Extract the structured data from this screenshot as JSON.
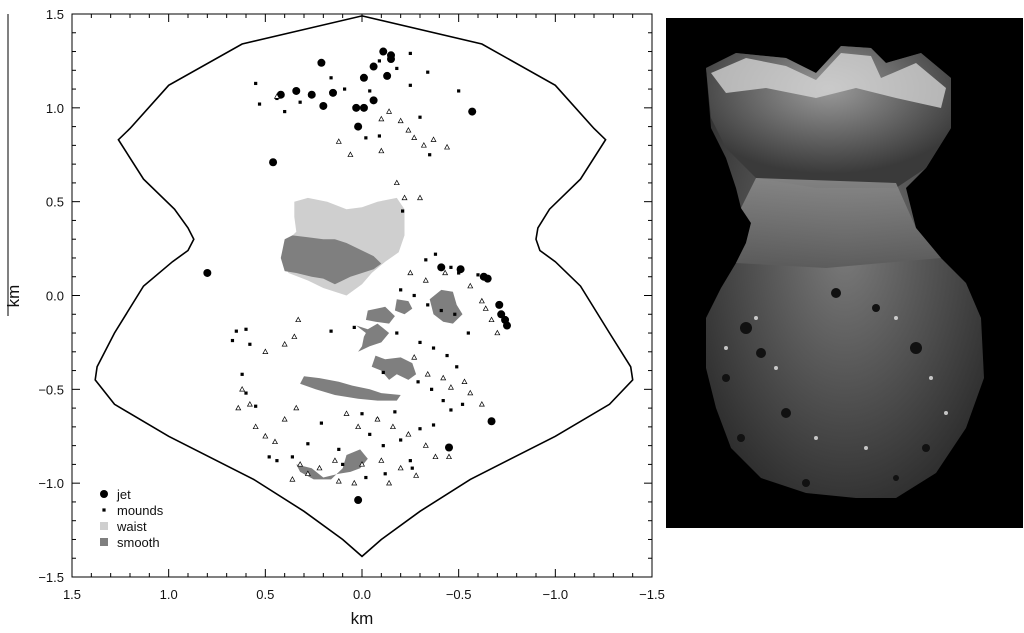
{
  "chart_data": {
    "type": "scatter",
    "xlabel": "km",
    "ylabel": "km",
    "xlim": [
      1.5,
      -1.5
    ],
    "ylim": [
      -1.5,
      1.5
    ],
    "x_ticks": [
      "1.5",
      "1.0",
      "0.5",
      "0.0",
      "−0.5",
      "−1.0",
      "−1.5"
    ],
    "y_ticks": [
      "−1.5",
      "−1.0",
      "−0.5",
      "0.0",
      "0.5",
      "1.0",
      "1.5"
    ],
    "legend_position": "bottom-left",
    "grid": false,
    "outline": [
      [
        0,
        1.49
      ],
      [
        -0.62,
        1.34
      ],
      [
        -1.0,
        1.12
      ],
      [
        -1.2,
        0.89
      ],
      [
        -1.26,
        0.83
      ],
      [
        -1.13,
        0.62
      ],
      [
        -0.97,
        0.46
      ],
      [
        -0.91,
        0.36
      ],
      [
        -0.9,
        0.3
      ],
      [
        -0.92,
        0.24
      ],
      [
        -1.0,
        0.18
      ],
      [
        -1.13,
        0.05
      ],
      [
        -1.28,
        -0.2
      ],
      [
        -1.39,
        -0.38
      ],
      [
        -1.4,
        -0.45
      ],
      [
        -1.28,
        -0.58
      ],
      [
        -1.0,
        -0.75
      ],
      [
        -0.56,
        -0.98
      ],
      [
        -0.3,
        -1.15
      ],
      [
        -0.1,
        -1.3
      ],
      [
        0,
        -1.39
      ],
      [
        0.1,
        -1.3
      ],
      [
        0.3,
        -1.15
      ],
      [
        0.56,
        -0.98
      ],
      [
        1.0,
        -0.75
      ],
      [
        1.28,
        -0.58
      ],
      [
        1.38,
        -0.45
      ],
      [
        1.37,
        -0.38
      ],
      [
        1.28,
        -0.2
      ],
      [
        1.13,
        0.05
      ],
      [
        0.98,
        0.18
      ],
      [
        0.9,
        0.24
      ],
      [
        0.87,
        0.3
      ],
      [
        0.9,
        0.36
      ],
      [
        0.97,
        0.46
      ],
      [
        1.13,
        0.62
      ],
      [
        1.26,
        0.83
      ],
      [
        1.2,
        0.89
      ],
      [
        1.0,
        1.12
      ],
      [
        0.62,
        1.34
      ],
      [
        0,
        1.49
      ]
    ],
    "series": [
      {
        "name": "jet",
        "marker": "circle",
        "color": "#000000",
        "points": [
          [
            0.21,
            1.24
          ],
          [
            0.42,
            1.07
          ],
          [
            0.34,
            1.09
          ],
          [
            0.26,
            1.07
          ],
          [
            0.2,
            1.01
          ],
          [
            0.15,
            1.08
          ],
          [
            0.03,
            1.0
          ],
          [
            0.02,
            0.9
          ],
          [
            -0.01,
            1.16
          ],
          [
            -0.06,
            1.22
          ],
          [
            -0.11,
            1.3
          ],
          [
            -0.15,
            1.28
          ],
          [
            -0.15,
            1.26
          ],
          [
            -0.13,
            1.17
          ],
          [
            -0.06,
            1.04
          ],
          [
            -0.01,
            1.0
          ],
          [
            0.46,
            0.71
          ],
          [
            -0.57,
            0.98
          ],
          [
            0.8,
            0.12
          ],
          [
            -0.41,
            0.15
          ],
          [
            -0.51,
            0.14
          ],
          [
            -0.63,
            0.1
          ],
          [
            -0.65,
            0.09
          ],
          [
            -0.71,
            -0.05
          ],
          [
            -0.72,
            -0.1
          ],
          [
            -0.74,
            -0.13
          ],
          [
            -0.75,
            -0.16
          ],
          [
            -0.67,
            -0.67
          ],
          [
            -0.45,
            -0.81
          ],
          [
            0.02,
            -1.09
          ]
        ]
      },
      {
        "name": "mounds",
        "marker": "square",
        "color": "#000000",
        "points": [
          [
            0.55,
            1.13
          ],
          [
            0.53,
            1.02
          ],
          [
            0.44,
            1.05
          ],
          [
            0.4,
            0.98
          ],
          [
            0.32,
            1.03
          ],
          [
            0.16,
            1.16
          ],
          [
            0.09,
            1.1
          ],
          [
            -0.04,
            1.09
          ],
          [
            -0.09,
            1.25
          ],
          [
            -0.18,
            1.21
          ],
          [
            -0.25,
            1.29
          ],
          [
            -0.34,
            1.19
          ],
          [
            -0.25,
            1.12
          ],
          [
            -0.5,
            1.09
          ],
          [
            -0.3,
            0.95
          ],
          [
            -0.35,
            0.75
          ],
          [
            -0.02,
            0.84
          ],
          [
            -0.09,
            0.85
          ],
          [
            -0.21,
            0.45
          ],
          [
            -0.38,
            0.22
          ],
          [
            -0.33,
            0.19
          ],
          [
            -0.46,
            0.15
          ],
          [
            -0.5,
            0.12
          ],
          [
            -0.6,
            0.11
          ],
          [
            -0.2,
            0.03
          ],
          [
            -0.27,
            0.0
          ],
          [
            -0.34,
            -0.05
          ],
          [
            -0.41,
            -0.08
          ],
          [
            -0.48,
            -0.1
          ],
          [
            -0.55,
            -0.2
          ],
          [
            0.16,
            -0.19
          ],
          [
            0.04,
            -0.17
          ],
          [
            -0.18,
            -0.2
          ],
          [
            -0.3,
            -0.25
          ],
          [
            -0.37,
            -0.28
          ],
          [
            -0.44,
            -0.32
          ],
          [
            -0.49,
            -0.38
          ],
          [
            0.6,
            -0.18
          ],
          [
            0.65,
            -0.19
          ],
          [
            0.67,
            -0.24
          ],
          [
            0.58,
            -0.26
          ],
          [
            0.62,
            -0.42
          ],
          [
            0.6,
            -0.52
          ],
          [
            0.55,
            -0.59
          ],
          [
            -0.11,
            -0.41
          ],
          [
            -0.29,
            -0.46
          ],
          [
            -0.36,
            -0.5
          ],
          [
            -0.42,
            -0.56
          ],
          [
            -0.46,
            -0.61
          ],
          [
            -0.52,
            -0.58
          ],
          [
            0.0,
            -0.63
          ],
          [
            -0.08,
            -0.66
          ],
          [
            -0.17,
            -0.62
          ],
          [
            0.21,
            -0.68
          ],
          [
            0.28,
            -0.79
          ],
          [
            0.12,
            -0.82
          ],
          [
            -0.04,
            -0.74
          ],
          [
            -0.11,
            -0.8
          ],
          [
            -0.2,
            -0.77
          ],
          [
            -0.3,
            -0.71
          ],
          [
            -0.37,
            -0.69
          ],
          [
            -0.25,
            -0.88
          ],
          [
            0.48,
            -0.86
          ],
          [
            0.44,
            -0.88
          ],
          [
            0.36,
            -0.86
          ],
          [
            0.1,
            -0.9
          ],
          [
            -0.12,
            -0.95
          ],
          [
            -0.26,
            -0.92
          ],
          [
            -0.02,
            -0.97
          ]
        ]
      },
      {
        "name": "waist",
        "marker": "region",
        "color": "#cfcfcf",
        "regions": [
          [
            [
              0.35,
              0.5
            ],
            [
              0.28,
              0.52
            ],
            [
              0.18,
              0.5
            ],
            [
              0.08,
              0.46
            ],
            [
              0.0,
              0.47
            ],
            [
              -0.08,
              0.5
            ],
            [
              -0.18,
              0.52
            ],
            [
              -0.22,
              0.46
            ],
            [
              -0.22,
              0.32
            ],
            [
              -0.19,
              0.23
            ],
            [
              -0.12,
              0.18
            ],
            [
              -0.05,
              0.12
            ],
            [
              0.0,
              0.06
            ],
            [
              0.08,
              0.0
            ],
            [
              0.2,
              0.04
            ],
            [
              0.28,
              0.08
            ],
            [
              0.38,
              0.12
            ],
            [
              0.42,
              0.2
            ],
            [
              0.4,
              0.28
            ],
            [
              0.34,
              0.34
            ],
            [
              0.35,
              0.42
            ]
          ]
        ]
      },
      {
        "name": "smooth",
        "marker": "region",
        "color": "#7f7f7f",
        "regions": [
          [
            [
              0.4,
              0.3
            ],
            [
              0.36,
              0.32
            ],
            [
              0.28,
              0.31
            ],
            [
              0.2,
              0.3
            ],
            [
              0.14,
              0.3
            ],
            [
              0.08,
              0.28
            ],
            [
              0.0,
              0.24
            ],
            [
              -0.06,
              0.21
            ],
            [
              -0.1,
              0.17
            ],
            [
              -0.06,
              0.14
            ],
            [
              0.0,
              0.12
            ],
            [
              0.06,
              0.1
            ],
            [
              0.1,
              0.08
            ],
            [
              0.14,
              0.06
            ],
            [
              0.2,
              0.09
            ],
            [
              0.26,
              0.1
            ],
            [
              0.34,
              0.12
            ],
            [
              0.4,
              0.13
            ],
            [
              0.42,
              0.2
            ]
          ],
          [
            [
              -0.35,
              -0.02
            ],
            [
              -0.41,
              0.03
            ],
            [
              -0.47,
              0.02
            ],
            [
              -0.49,
              -0.05
            ],
            [
              -0.52,
              -0.1
            ],
            [
              -0.47,
              -0.15
            ],
            [
              -0.42,
              -0.14
            ],
            [
              -0.37,
              -0.1
            ]
          ],
          [
            [
              -0.18,
              -0.02
            ],
            [
              -0.24,
              -0.03
            ],
            [
              -0.26,
              -0.07
            ],
            [
              -0.22,
              -0.1
            ],
            [
              -0.17,
              -0.08
            ]
          ],
          [
            [
              -0.03,
              -0.08
            ],
            [
              -0.12,
              -0.06
            ],
            [
              -0.17,
              -0.11
            ],
            [
              -0.14,
              -0.15
            ],
            [
              -0.07,
              -0.14
            ],
            [
              -0.02,
              -0.13
            ]
          ],
          [
            [
              0.03,
              -0.16
            ],
            [
              -0.03,
              -0.18
            ],
            [
              -0.08,
              -0.15
            ],
            [
              -0.14,
              -0.2
            ],
            [
              -0.1,
              -0.25
            ],
            [
              -0.04,
              -0.27
            ],
            [
              0.02,
              -0.3
            ],
            [
              0.0,
              -0.27
            ],
            [
              -0.01,
              -0.22
            ],
            [
              -0.02,
              -0.2
            ]
          ],
          [
            [
              -0.07,
              -0.32
            ],
            [
              -0.12,
              -0.34
            ],
            [
              -0.2,
              -0.33
            ],
            [
              -0.26,
              -0.36
            ],
            [
              -0.28,
              -0.42
            ],
            [
              -0.24,
              -0.45
            ],
            [
              -0.18,
              -0.42
            ],
            [
              -0.14,
              -0.45
            ],
            [
              -0.1,
              -0.4
            ],
            [
              -0.05,
              -0.38
            ]
          ],
          [
            [
              0.3,
              -0.43
            ],
            [
              0.22,
              -0.44
            ],
            [
              0.12,
              -0.46
            ],
            [
              0.05,
              -0.48
            ],
            [
              -0.04,
              -0.5
            ],
            [
              -0.1,
              -0.52
            ],
            [
              -0.2,
              -0.53
            ],
            [
              -0.18,
              -0.56
            ],
            [
              -0.08,
              -0.56
            ],
            [
              0.02,
              -0.55
            ],
            [
              0.14,
              -0.53
            ],
            [
              0.24,
              -0.5
            ],
            [
              0.32,
              -0.47
            ]
          ],
          [
            [
              0.08,
              -0.85
            ],
            [
              0.01,
              -0.82
            ],
            [
              -0.03,
              -0.87
            ],
            [
              0.01,
              -0.92
            ],
            [
              0.06,
              -0.94
            ],
            [
              0.12,
              -0.95
            ],
            [
              0.2,
              -0.97
            ],
            [
              0.26,
              -0.92
            ],
            [
              0.34,
              -0.9
            ],
            [
              0.32,
              -0.94
            ],
            [
              0.25,
              -0.98
            ],
            [
              0.16,
              -0.98
            ],
            [
              0.1,
              -0.92
            ]
          ]
        ]
      }
    ],
    "photo_panel": "right"
  }
}
